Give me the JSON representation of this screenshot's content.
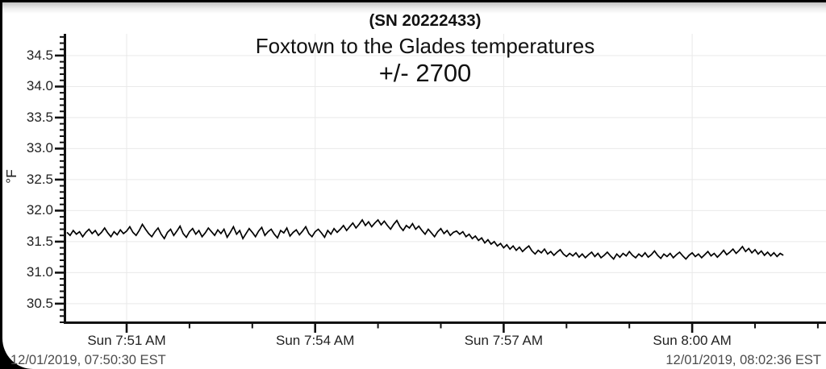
{
  "chart_data": {
    "type": "line",
    "sn_label": "(SN 20222433)",
    "title": "Foxtown to the Glades temperatures",
    "subtitle": "+/- 2700",
    "xlabel": "",
    "ylabel": "°F",
    "ylim": [
      30.2,
      34.85
    ],
    "y_ticks": [
      34.5,
      34.0,
      33.5,
      33.0,
      32.5,
      32.0,
      31.5,
      31.0,
      30.5
    ],
    "y_minor_step": 0.1,
    "grid": "on",
    "x_ticks": [
      {
        "m": 0,
        "label": "Sun 7:51 AM"
      },
      {
        "m": 3,
        "label": "Sun 7:54 AM"
      },
      {
        "m": 6,
        "label": "Sun 7:57 AM"
      },
      {
        "m": 9,
        "label": "Sun 8:00 AM"
      }
    ],
    "x_minor_step_min": 1,
    "x_minor_range_min": [
      0,
      11
    ],
    "footer_left": "12/01/2019, 07:50:30 EST",
    "footer_right": "12/01/2019, 08:02:36 EST",
    "series": [
      {
        "name": "temperature",
        "color": "#000000",
        "start_min": -0.95,
        "step_min": 0.05,
        "values": [
          31.65,
          31.6,
          31.68,
          31.62,
          31.66,
          31.58,
          31.65,
          31.7,
          31.63,
          31.68,
          31.6,
          31.65,
          31.72,
          31.64,
          31.58,
          31.66,
          31.61,
          31.69,
          31.63,
          31.67,
          31.74,
          31.65,
          31.6,
          31.68,
          31.78,
          31.7,
          31.63,
          31.58,
          31.66,
          31.72,
          31.62,
          31.55,
          31.65,
          31.7,
          31.6,
          31.67,
          31.75,
          31.63,
          31.57,
          31.66,
          31.71,
          31.62,
          31.68,
          31.58,
          31.64,
          31.72,
          31.66,
          31.6,
          31.69,
          31.63,
          31.7,
          31.57,
          31.65,
          31.74,
          31.62,
          31.68,
          31.55,
          31.63,
          31.71,
          31.65,
          31.58,
          31.67,
          31.73,
          31.6,
          31.66,
          31.7,
          31.62,
          31.56,
          31.68,
          31.64,
          31.72,
          31.59,
          31.65,
          31.69,
          31.61,
          31.67,
          31.74,
          31.63,
          31.58,
          31.66,
          31.7,
          31.64,
          31.57,
          31.68,
          31.62,
          31.71,
          31.65,
          31.7,
          31.76,
          31.68,
          31.74,
          31.8,
          31.72,
          31.78,
          31.85,
          31.76,
          31.82,
          31.74,
          31.8,
          31.85,
          31.77,
          31.83,
          31.76,
          31.7,
          31.78,
          31.84,
          31.74,
          31.68,
          31.76,
          31.72,
          31.79,
          31.7,
          31.75,
          31.68,
          31.62,
          31.7,
          31.64,
          31.58,
          31.66,
          31.71,
          31.63,
          31.68,
          31.6,
          31.65,
          31.67,
          31.62,
          31.66,
          31.58,
          31.62,
          31.55,
          31.59,
          31.52,
          31.56,
          31.48,
          31.53,
          31.46,
          31.5,
          31.43,
          31.47,
          31.4,
          31.45,
          31.38,
          31.43,
          31.36,
          31.41,
          31.34,
          31.39,
          31.43,
          31.35,
          31.3,
          31.36,
          31.32,
          31.38,
          31.3,
          31.34,
          31.28,
          31.33,
          31.37,
          31.3,
          31.26,
          31.31,
          31.27,
          31.32,
          31.25,
          31.3,
          31.24,
          31.29,
          31.33,
          31.26,
          31.31,
          31.24,
          31.28,
          31.33,
          31.27,
          31.22,
          31.3,
          31.25,
          31.31,
          31.27,
          31.34,
          31.28,
          31.24,
          31.3,
          31.26,
          31.32,
          31.25,
          31.29,
          31.35,
          31.28,
          31.23,
          31.3,
          31.26,
          31.31,
          31.24,
          31.29,
          31.33,
          31.27,
          31.22,
          31.28,
          31.32,
          31.26,
          31.3,
          31.24,
          31.29,
          31.34,
          31.27,
          31.31,
          31.25,
          31.3,
          31.36,
          31.29,
          31.33,
          31.38,
          31.31,
          31.36,
          31.42,
          31.34,
          31.39,
          31.32,
          31.37,
          31.3,
          31.35,
          31.28,
          31.33,
          31.27,
          31.32,
          31.26,
          31.31,
          31.28
        ]
      }
    ]
  }
}
